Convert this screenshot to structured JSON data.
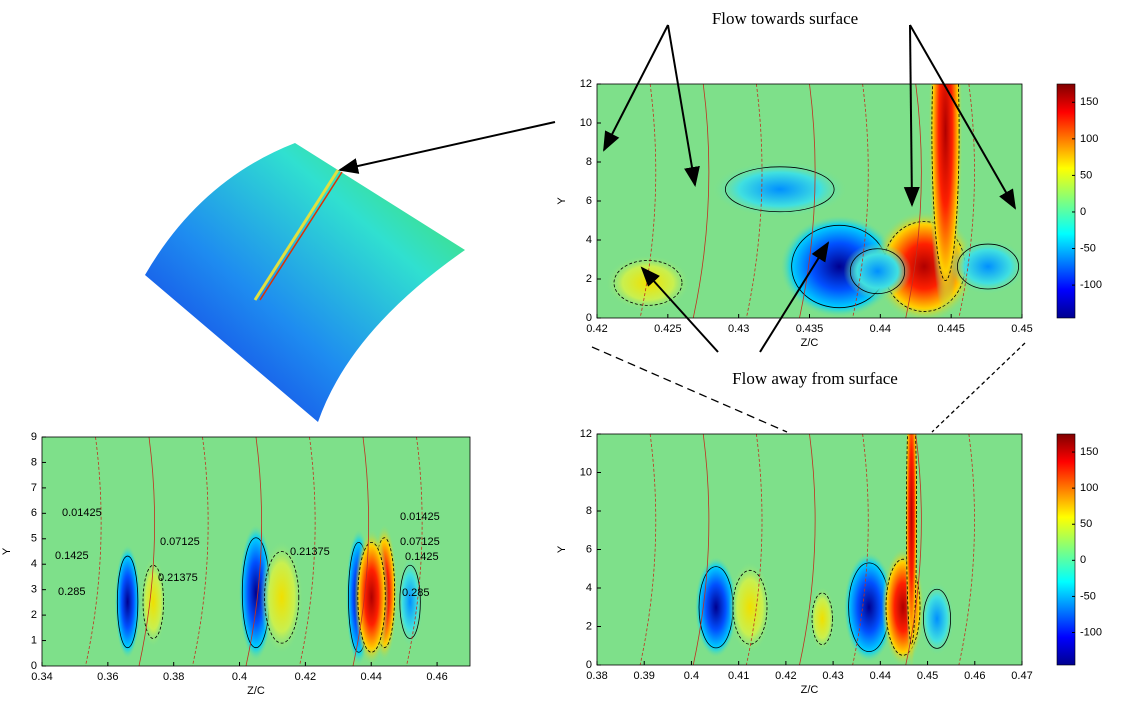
{
  "annotations": [
    "Flow towards surface",
    "Flow away from surface"
  ],
  "chart_data": [
    {
      "type": "contour",
      "x_label": "Z/C",
      "y_label": "Y",
      "xlim": [
        0.42,
        0.45
      ],
      "xticks": [
        0.42,
        0.425,
        0.43,
        0.435,
        0.44,
        0.445,
        0.45
      ],
      "ylim": [
        0,
        12
      ],
      "yticks": [
        0,
        2,
        4,
        6,
        8,
        10,
        12
      ],
      "clim": [
        -145,
        175
      ],
      "colorbar_ticks": [
        -100,
        -50,
        0,
        50,
        100,
        150
      ]
    },
    {
      "type": "contour",
      "x_label": "Z/C",
      "y_label": "Y",
      "xlim": [
        0.34,
        0.47
      ],
      "xticks": [
        0.34,
        0.36,
        0.38,
        0.4,
        0.42,
        0.44,
        0.46
      ],
      "ylim": [
        0,
        9
      ],
      "yticks": [
        0,
        1,
        2,
        3,
        4,
        5,
        6,
        7,
        8,
        9
      ],
      "contour_labels": [
        "0.01425",
        "0.07125",
        "0.1425",
        "0.21375",
        "0.285",
        "0.01425",
        "0.07125",
        "0.1425",
        "0.285",
        "0.21375"
      ]
    },
    {
      "type": "contour",
      "x_label": "Z/C",
      "y_label": "Y",
      "xlim": [
        0.38,
        0.47
      ],
      "xticks": [
        0.38,
        0.39,
        0.4,
        0.41,
        0.42,
        0.43,
        0.44,
        0.45,
        0.46,
        0.47
      ],
      "ylim": [
        0,
        12
      ],
      "yticks": [
        0,
        2,
        4,
        6,
        8,
        10,
        12
      ],
      "clim": [
        -145,
        175
      ],
      "colorbar_ticks": [
        -100,
        -50,
        0,
        50,
        100,
        150
      ]
    }
  ]
}
